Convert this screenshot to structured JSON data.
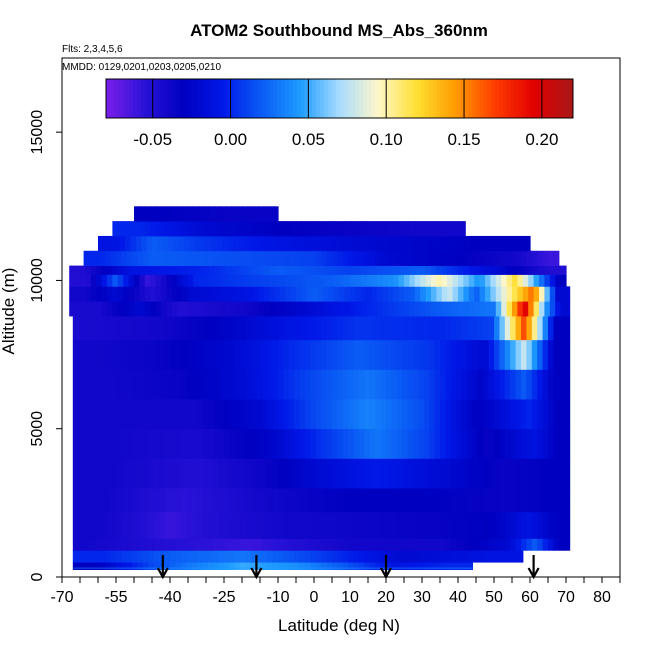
{
  "chart_data": {
    "type": "heatmap",
    "title": "ATOM2 Southbound MS_Abs_360nm",
    "notes": [
      "Flts: 2,3,4,5,6",
      "MMDD: 0129,0201,0203,0205,0210"
    ],
    "xlabel": "Latitude (deg N)",
    "ylabel": "Altitude (m)",
    "xlim": [
      -70,
      85
    ],
    "ylim": [
      0,
      17500
    ],
    "x_ticks": [
      -70,
      -55,
      -40,
      -25,
      -10,
      0,
      10,
      20,
      30,
      40,
      50,
      60,
      70,
      80
    ],
    "x_tick_labels": [
      "-70",
      "-55",
      "-40",
      "-25",
      "-10",
      "0",
      "10",
      "20",
      "30",
      "40",
      "50",
      "60",
      "70",
      "80"
    ],
    "x_minor_ticks": [
      -65,
      -60,
      -50,
      -45,
      -35,
      -30,
      -20,
      -15,
      -5,
      5,
      15,
      25,
      35,
      45,
      55,
      65,
      75,
      85
    ],
    "y_ticks": [
      0,
      5000,
      10000,
      15000
    ],
    "y_tick_labels": [
      "0",
      "5000",
      "10000",
      "15000"
    ],
    "colorbar": {
      "min": -0.08,
      "max": 0.22,
      "ticks": [
        -0.05,
        0.0,
        0.05,
        0.1,
        0.15,
        0.2
      ],
      "tick_labels": [
        "-0.05",
        "0.00",
        "0.05",
        "0.10",
        "0.15",
        "0.20"
      ],
      "colors": [
        "#7b1fe8",
        "#2a12d8",
        "#0000c0",
        "#0018e8",
        "#0a5cf5",
        "#1e9cff",
        "#a8dcff",
        "#fff7c8",
        "#ffdf30",
        "#ff9a00",
        "#ff3c00",
        "#e00000",
        "#a81818"
      ]
    },
    "arrows_latitude": [
      -42,
      -16,
      20,
      61
    ],
    "flight_track_altitude": 300,
    "bands": [
      {
        "altitude": [
          250,
          500
        ],
        "lat": [
          -67,
          44
        ],
        "segments": [
          [
            -67,
            -52,
            -0.03
          ],
          [
            -52,
            -40,
            0.01
          ],
          [
            -40,
            -30,
            0.03
          ],
          [
            -30,
            -10,
            0.05
          ],
          [
            -10,
            0,
            0.04
          ],
          [
            0,
            15,
            0.02
          ],
          [
            15,
            30,
            -0.01
          ],
          [
            30,
            44,
            0.0
          ]
        ]
      },
      {
        "altitude": [
          500,
          900
        ],
        "lat": [
          -67,
          58
        ],
        "segments": [
          [
            -67,
            -50,
            0.0
          ],
          [
            -50,
            -30,
            0.02
          ],
          [
            -30,
            -10,
            0.03
          ],
          [
            -10,
            10,
            0.01
          ],
          [
            10,
            40,
            -0.02
          ],
          [
            40,
            58,
            -0.01
          ]
        ]
      },
      {
        "altitude": [
          900,
          1300
        ],
        "lat": [
          -67,
          71
        ],
        "segments": [
          [
            -67,
            -60,
            -0.04
          ],
          [
            -60,
            -25,
            -0.05
          ],
          [
            -25,
            -10,
            -0.06
          ],
          [
            -10,
            0,
            -0.05
          ],
          [
            0,
            20,
            -0.04
          ],
          [
            20,
            50,
            -0.04
          ],
          [
            50,
            58,
            -0.02
          ],
          [
            58,
            65,
            0.02
          ],
          [
            65,
            71,
            -0.03
          ]
        ]
      },
      {
        "altitude": [
          1300,
          2200
        ],
        "lat": [
          -67,
          71
        ],
        "segments": [
          [
            -67,
            -50,
            -0.04
          ],
          [
            -50,
            -45,
            -0.05
          ],
          [
            -45,
            -35,
            -0.06
          ],
          [
            -35,
            -25,
            -0.05
          ],
          [
            -25,
            10,
            -0.04
          ],
          [
            10,
            45,
            -0.035
          ],
          [
            45,
            55,
            -0.03
          ],
          [
            55,
            64,
            -0.01
          ],
          [
            64,
            71,
            -0.03
          ]
        ]
      },
      {
        "altitude": [
          2200,
          3000
        ],
        "lat": [
          -67,
          71
        ],
        "segments": [
          [
            -67,
            -48,
            -0.04
          ],
          [
            -48,
            -25,
            -0.055
          ],
          [
            -25,
            0,
            -0.04
          ],
          [
            0,
            20,
            -0.03
          ],
          [
            20,
            45,
            -0.03
          ],
          [
            45,
            60,
            -0.035
          ],
          [
            60,
            71,
            -0.03
          ]
        ]
      },
      {
        "altitude": [
          3000,
          4000
        ],
        "lat": [
          -67,
          71
        ],
        "segments": [
          [
            -67,
            -45,
            -0.04
          ],
          [
            -45,
            -20,
            -0.05
          ],
          [
            -20,
            -5,
            -0.035
          ],
          [
            -5,
            5,
            -0.02
          ],
          [
            5,
            30,
            -0.005
          ],
          [
            30,
            45,
            -0.02
          ],
          [
            45,
            60,
            -0.035
          ],
          [
            60,
            71,
            -0.03
          ]
        ]
      },
      {
        "altitude": [
          4000,
          5000
        ],
        "lat": [
          -67,
          71
        ],
        "segments": [
          [
            -67,
            -45,
            -0.04
          ],
          [
            -45,
            -20,
            -0.045
          ],
          [
            -20,
            -5,
            -0.025
          ],
          [
            -5,
            10,
            0.005
          ],
          [
            10,
            25,
            0.03
          ],
          [
            25,
            38,
            0.01
          ],
          [
            38,
            58,
            -0.035
          ],
          [
            58,
            64,
            -0.01
          ],
          [
            64,
            71,
            -0.03
          ]
        ]
      },
      {
        "altitude": [
          5000,
          6000
        ],
        "lat": [
          -67,
          71
        ],
        "segments": [
          [
            -67,
            -45,
            -0.04
          ],
          [
            -45,
            -22,
            -0.04
          ],
          [
            -22,
            -8,
            -0.02
          ],
          [
            -8,
            5,
            0.01
          ],
          [
            5,
            25,
            0.035
          ],
          [
            25,
            35,
            0.015
          ],
          [
            35,
            56,
            -0.03
          ],
          [
            56,
            64,
            0.0
          ],
          [
            64,
            71,
            -0.03
          ]
        ]
      },
      {
        "altitude": [
          6000,
          7000
        ],
        "lat": [
          -67,
          71
        ],
        "segments": [
          [
            -67,
            -50,
            -0.04
          ],
          [
            -50,
            -25,
            -0.035
          ],
          [
            -25,
            -10,
            -0.015
          ],
          [
            -10,
            5,
            0.01
          ],
          [
            5,
            25,
            0.03
          ],
          [
            25,
            38,
            0.01
          ],
          [
            38,
            55,
            -0.025
          ],
          [
            55,
            62,
            0.02
          ],
          [
            62,
            71,
            -0.03
          ]
        ]
      },
      {
        "altitude": [
          7000,
          8000
        ],
        "lat": [
          -67,
          71
        ],
        "segments": [
          [
            -67,
            -55,
            -0.04
          ],
          [
            -55,
            -30,
            -0.035
          ],
          [
            -30,
            -15,
            -0.02
          ],
          [
            -15,
            0,
            0.0
          ],
          [
            0,
            25,
            0.02
          ],
          [
            25,
            40,
            0.005
          ],
          [
            40,
            55,
            -0.02
          ],
          [
            55,
            62,
            0.08
          ],
          [
            62,
            71,
            -0.03
          ]
        ]
      },
      {
        "altitude": [
          8000,
          8800
        ],
        "lat": [
          -67,
          71
        ],
        "segments": [
          [
            -67,
            -55,
            -0.045
          ],
          [
            -55,
            -30,
            -0.04
          ],
          [
            -30,
            -15,
            -0.025
          ],
          [
            -15,
            0,
            -0.01
          ],
          [
            0,
            25,
            0.005
          ],
          [
            25,
            45,
            0.0
          ],
          [
            45,
            54,
            0.01
          ],
          [
            54,
            63,
            0.17
          ],
          [
            63,
            71,
            -0.03
          ]
        ]
      },
      {
        "altitude": [
          8800,
          9300
        ],
        "lat": [
          -68,
          71
        ],
        "segments": [
          [
            -68,
            -52,
            -0.045
          ],
          [
            -52,
            -45,
            -0.02
          ],
          [
            -45,
            -30,
            -0.05
          ],
          [
            -30,
            -10,
            -0.04
          ],
          [
            -10,
            5,
            -0.02
          ],
          [
            5,
            25,
            0.0
          ],
          [
            25,
            45,
            0.02
          ],
          [
            45,
            55,
            0.03
          ],
          [
            55,
            62,
            0.2
          ],
          [
            62,
            66,
            0.05
          ],
          [
            66,
            71,
            -0.02
          ]
        ]
      },
      {
        "altitude": [
          9300,
          9800
        ],
        "lat": [
          -68,
          71
        ],
        "segments": [
          [
            -68,
            -60,
            -0.04
          ],
          [
            -60,
            -50,
            -0.02
          ],
          [
            -50,
            -40,
            -0.05
          ],
          [
            -40,
            -28,
            -0.02
          ],
          [
            -28,
            -10,
            -0.01
          ],
          [
            -10,
            10,
            0.02
          ],
          [
            10,
            20,
            0.0
          ],
          [
            20,
            35,
            0.02
          ],
          [
            35,
            40,
            0.08
          ],
          [
            40,
            50,
            0.02
          ],
          [
            50,
            58,
            0.1
          ],
          [
            58,
            64,
            0.16
          ],
          [
            64,
            71,
            -0.02
          ]
        ]
      },
      {
        "altitude": [
          9800,
          10200
        ],
        "lat": [
          -68,
          70
        ],
        "segments": [
          [
            -68,
            -58,
            -0.05
          ],
          [
            -58,
            -52,
            0.02
          ],
          [
            -52,
            -40,
            -0.06
          ],
          [
            -40,
            -25,
            0.0
          ],
          [
            -25,
            -5,
            0.01
          ],
          [
            -5,
            15,
            0.02
          ],
          [
            15,
            30,
            0.04
          ],
          [
            30,
            40,
            0.1
          ],
          [
            40,
            52,
            0.04
          ],
          [
            52,
            60,
            0.12
          ],
          [
            60,
            66,
            0.03
          ],
          [
            66,
            70,
            -0.03
          ]
        ]
      },
      {
        "altitude": [
          10200,
          10500
        ],
        "lat": [
          -68,
          70
        ],
        "segments": [
          [
            -68,
            -62,
            -0.05
          ],
          [
            -62,
            -40,
            -0.01
          ],
          [
            -40,
            -20,
            0.0
          ],
          [
            -20,
            0,
            0.02
          ],
          [
            0,
            20,
            0.01
          ],
          [
            20,
            40,
            0.02
          ],
          [
            40,
            62,
            -0.02
          ],
          [
            62,
            70,
            -0.05
          ]
        ]
      },
      {
        "altitude": [
          10500,
          11000
        ],
        "lat": [
          -64,
          68
        ],
        "segments": [
          [
            -64,
            -55,
            0.0
          ],
          [
            -55,
            -35,
            0.02
          ],
          [
            -35,
            -10,
            0.015
          ],
          [
            -10,
            10,
            0.01
          ],
          [
            10,
            30,
            -0.02
          ],
          [
            30,
            50,
            -0.03
          ],
          [
            50,
            62,
            -0.04
          ],
          [
            62,
            68,
            -0.06
          ]
        ]
      },
      {
        "altitude": [
          11000,
          11500
        ],
        "lat": [
          -60,
          60
        ],
        "segments": [
          [
            -60,
            -50,
            -0.01
          ],
          [
            -50,
            -40,
            0.02
          ],
          [
            -40,
            -20,
            0.005
          ],
          [
            -20,
            0,
            -0.01
          ],
          [
            0,
            30,
            -0.02
          ],
          [
            30,
            60,
            -0.03
          ]
        ]
      },
      {
        "altitude": [
          11500,
          12000
        ],
        "lat": [
          -56,
          42
        ],
        "segments": [
          [
            -56,
            -40,
            0.0
          ],
          [
            -40,
            -20,
            -0.02
          ],
          [
            -20,
            0,
            -0.03
          ],
          [
            0,
            20,
            -0.035
          ],
          [
            20,
            42,
            -0.04
          ]
        ]
      },
      {
        "altitude": [
          12000,
          12500
        ],
        "lat": [
          -50,
          -10
        ],
        "segments": [
          [
            -50,
            -35,
            -0.03
          ],
          [
            -35,
            -10,
            -0.035
          ]
        ]
      }
    ]
  }
}
